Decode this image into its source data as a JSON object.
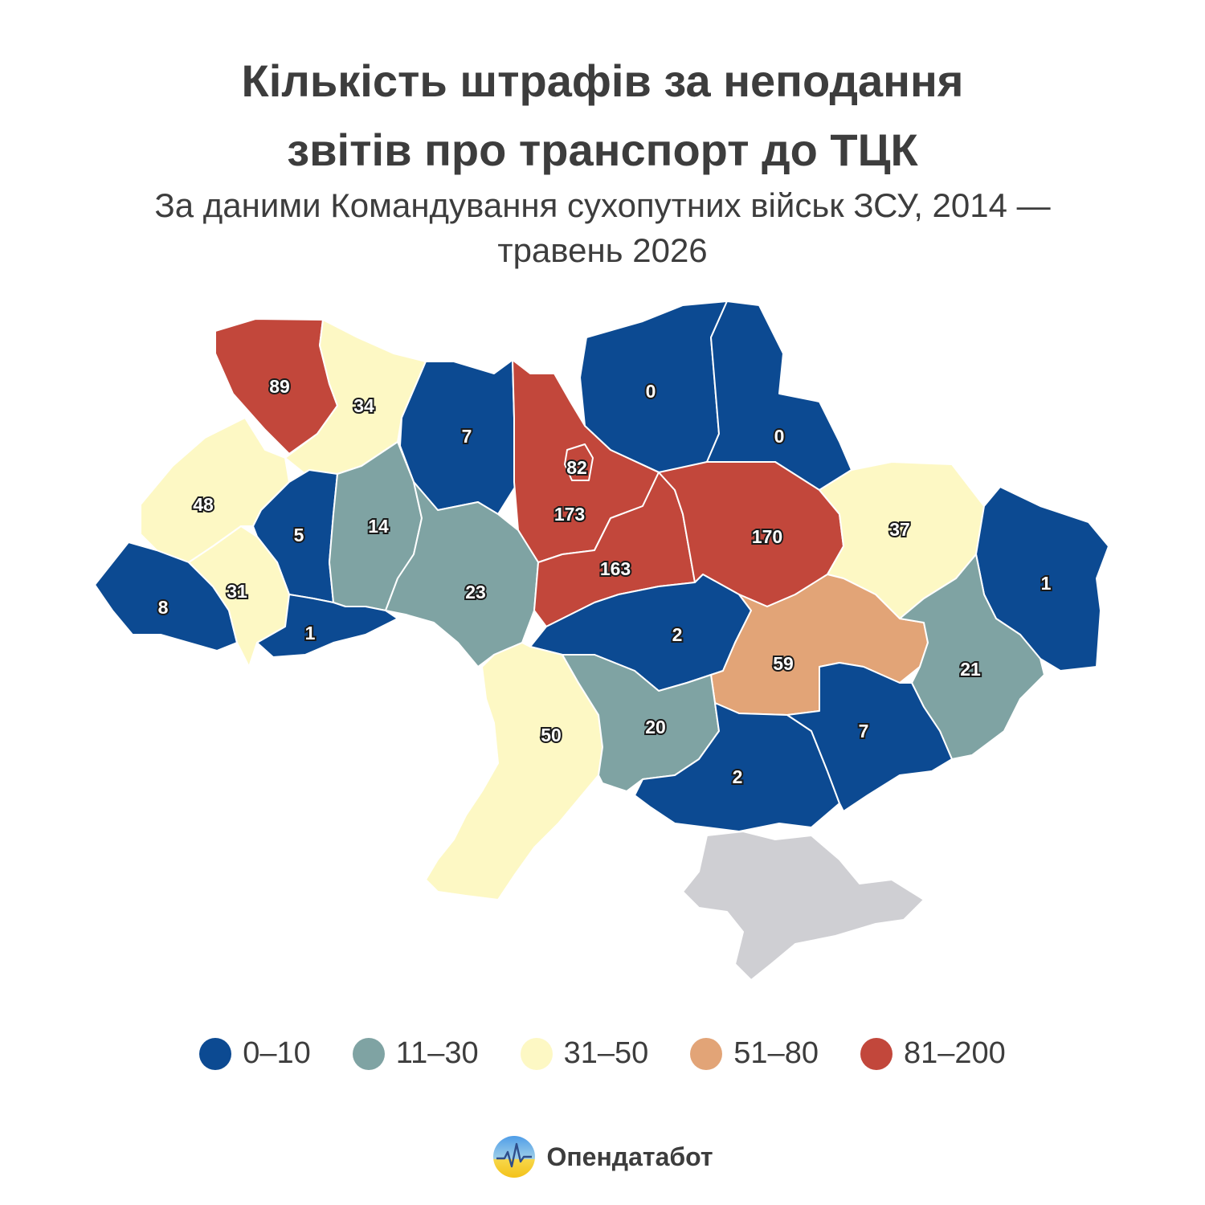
{
  "title_line1": "Кількість штрафів за неподання",
  "title_line2": "звітів про транспорт до ТЦК",
  "subtitle_line1": "За даними Командування сухопутних військ ЗСУ, 2014 —",
  "subtitle_line2": "травень 2026",
  "legend": [
    {
      "label": "0–10",
      "color": "#0c4a92"
    },
    {
      "label": "11–30",
      "color": "#7fa3a3"
    },
    {
      "label": "31–50",
      "color": "#fdf8c4"
    },
    {
      "label": "51–80",
      "color": "#e2a477"
    },
    {
      "label": "81–200",
      "color": "#c2473b"
    }
  ],
  "no_data_color": "#cfcfd3",
  "brand": "Опендатабот",
  "chart_data": {
    "type": "choropleth",
    "regions": [
      {
        "id": "volyn",
        "value": 89
      },
      {
        "id": "rivne",
        "value": 34
      },
      {
        "id": "zhytomyr",
        "value": 7
      },
      {
        "id": "kyiv-oblast",
        "value": 173
      },
      {
        "id": "kyiv-city",
        "value": 82
      },
      {
        "id": "chernihiv",
        "value": 0
      },
      {
        "id": "sumy",
        "value": 0
      },
      {
        "id": "lviv",
        "value": 48
      },
      {
        "id": "ternopil",
        "value": 5
      },
      {
        "id": "khmelnytskyi",
        "value": 14
      },
      {
        "id": "vinnytsia",
        "value": 23
      },
      {
        "id": "cherkasy",
        "value": 163
      },
      {
        "id": "poltava",
        "value": 170
      },
      {
        "id": "kharkiv",
        "value": 37
      },
      {
        "id": "luhansk",
        "value": 1
      },
      {
        "id": "zakarpattia",
        "value": 8
      },
      {
        "id": "ivano-frankivsk",
        "value": 31
      },
      {
        "id": "chernivtsi",
        "value": 1
      },
      {
        "id": "kirovohrad",
        "value": 2
      },
      {
        "id": "dnipropetrovsk",
        "value": 59
      },
      {
        "id": "donetsk",
        "value": 21
      },
      {
        "id": "odesa",
        "value": 50
      },
      {
        "id": "mykolaiv",
        "value": 20
      },
      {
        "id": "kherson",
        "value": 2
      },
      {
        "id": "zaporizhzhia",
        "value": 7
      },
      {
        "id": "crimea",
        "value": null
      }
    ]
  }
}
